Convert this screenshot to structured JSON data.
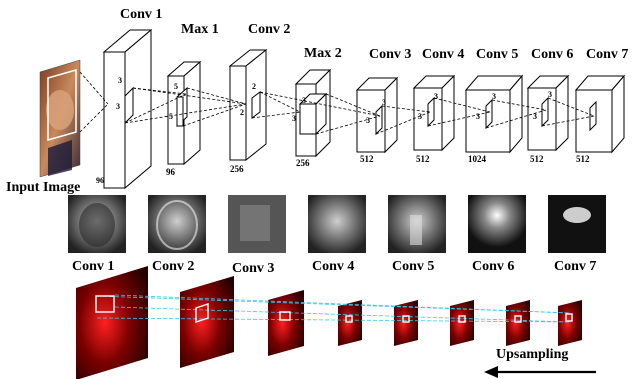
{
  "input_label": "Input Image",
  "blocks": [
    {
      "name": "Conv 1",
      "channels": "96",
      "kernel": "3"
    },
    {
      "name": "Max 1",
      "channels": "96",
      "kernel": "5"
    },
    {
      "name": "Conv 2",
      "channels": "256",
      "kernel": "2"
    },
    {
      "name": "Max 2",
      "channels": "256",
      "kernel": "3"
    },
    {
      "name": "Conv 3",
      "channels": "512",
      "kernel": "3"
    },
    {
      "name": "Conv 4",
      "channels": "512",
      "kernel": "3"
    },
    {
      "name": "Conv 5",
      "channels": "1024",
      "kernel": "3"
    },
    {
      "name": "Conv 6",
      "channels": "512",
      "kernel": "3"
    },
    {
      "name": "Conv 7",
      "channels": "512",
      "kernel": ""
    }
  ],
  "feature_labels": [
    "Conv 1",
    "Conv 2",
    "Conv 3",
    "Conv 4",
    "Conv 5",
    "Conv 6",
    "Conv 7"
  ],
  "upsampling_label": "Upsampling",
  "colors": {
    "heatmap_bg": "#3a0000",
    "heat": "#ff2020",
    "guide_line": "#33ccee"
  }
}
